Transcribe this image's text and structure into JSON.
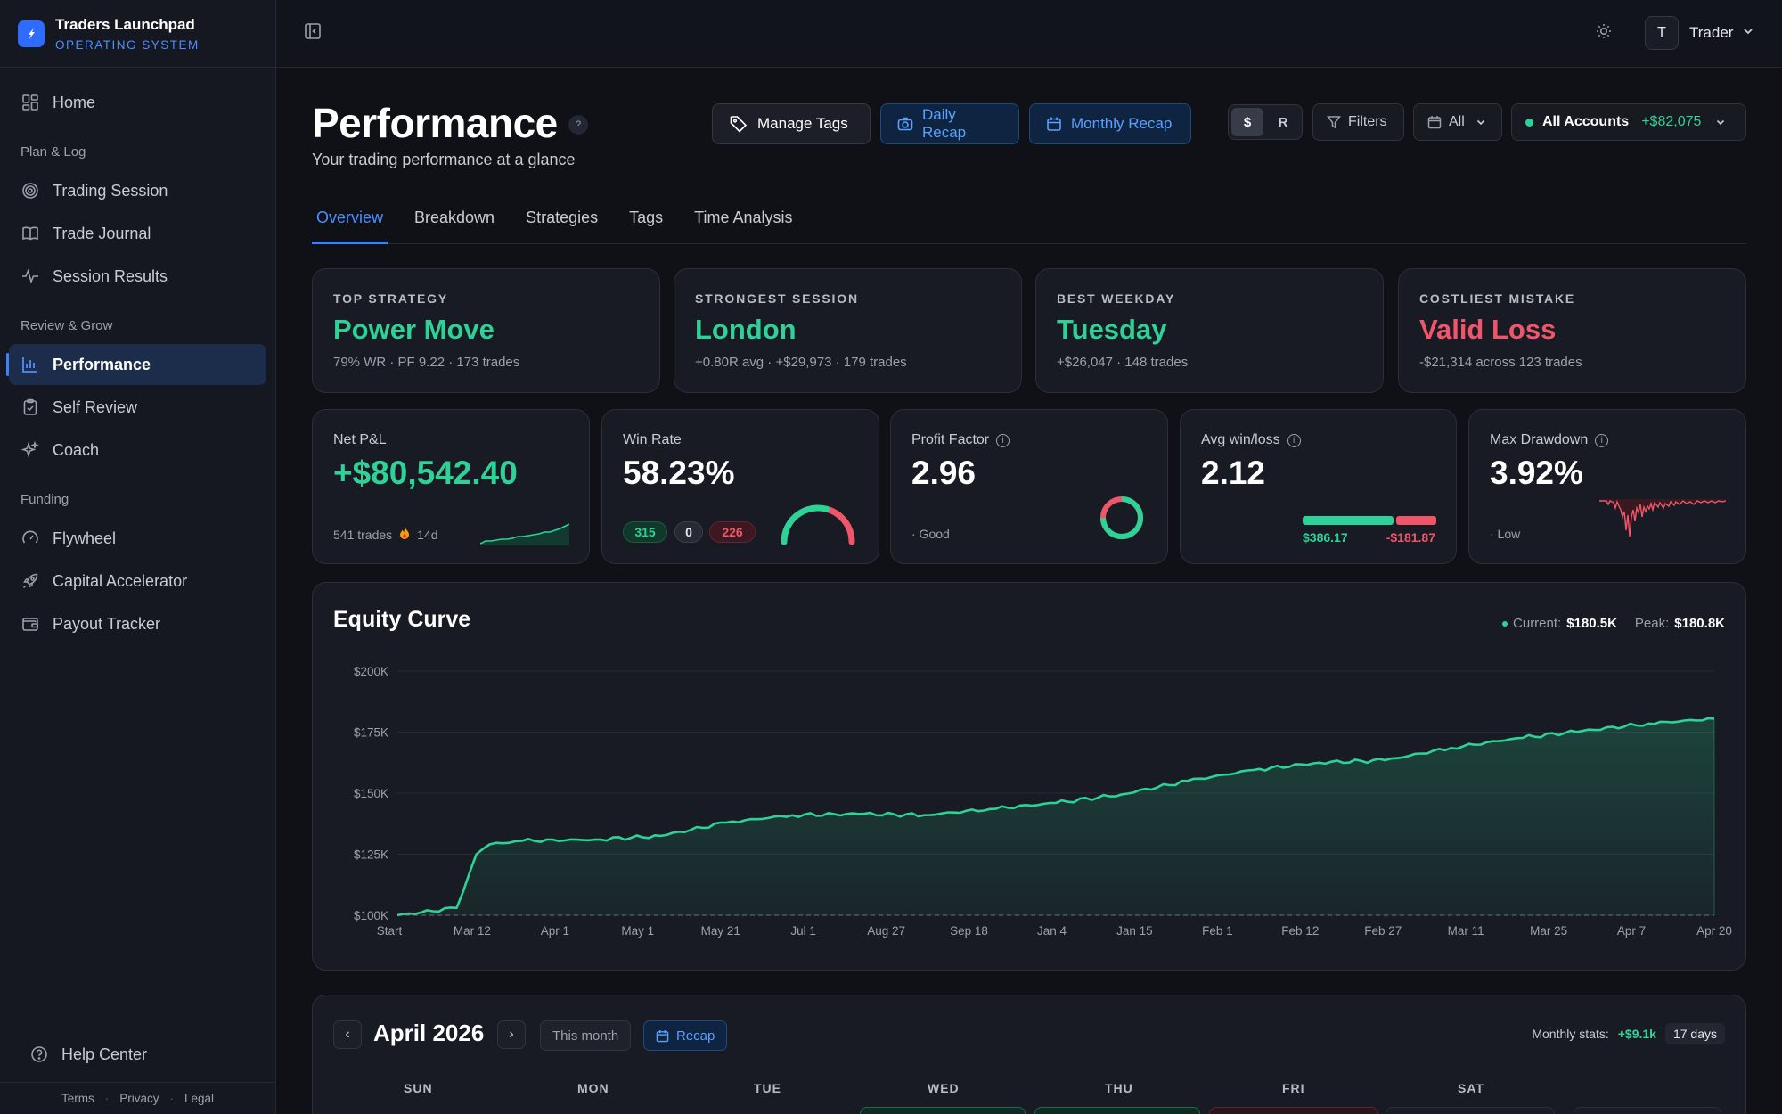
{
  "brand": {
    "title": "Traders Launchpad",
    "subtitle": "OPERATING SYSTEM"
  },
  "sidebar": {
    "home": "Home",
    "group_plan": "Plan & Log",
    "trading_session": "Trading Session",
    "trade_journal": "Trade Journal",
    "session_results": "Session Results",
    "group_review": "Review & Grow",
    "performance": "Performance",
    "self_review": "Self Review",
    "coach": "Coach",
    "group_funding": "Funding",
    "flywheel": "Flywheel",
    "capital_accelerator": "Capital Accelerator",
    "payout_tracker": "Payout Tracker",
    "help_center": "Help Center",
    "footer": {
      "terms": "Terms",
      "privacy": "Privacy",
      "legal": "Legal"
    }
  },
  "topbar": {
    "avatar_initial": "T",
    "user_name": "Trader"
  },
  "header": {
    "title": "Performance",
    "help": "?",
    "subtitle": "Your trading performance at a glance",
    "manage_tags": "Manage Tags",
    "daily_recap": "Daily Recap",
    "monthly_recap": "Monthly Recap",
    "unit_dollar": "$",
    "unit_r": "R",
    "filters": "Filters",
    "range": "All",
    "account": "All Accounts",
    "account_pnl": "+$82,075"
  },
  "tabs": [
    "Overview",
    "Breakdown",
    "Strategies",
    "Tags",
    "Time Analysis"
  ],
  "insights": [
    {
      "label": "TOP STRATEGY",
      "value": "Power Move",
      "detail": "79% WR · PF 9.22 · 173 trades",
      "tone": "green"
    },
    {
      "label": "STRONGEST SESSION",
      "value": "London",
      "detail": "+0.80R avg · +$29,973 · 179 trades",
      "tone": "green"
    },
    {
      "label": "BEST WEEKDAY",
      "value": "Tuesday",
      "detail": "+$26,047 · 148 trades",
      "tone": "green"
    },
    {
      "label": "COSTLIEST MISTAKE",
      "value": "Valid Loss",
      "detail": "-$21,314 across 123 trades",
      "tone": "red"
    }
  ],
  "metrics": {
    "net_pnl": {
      "label": "Net P&L",
      "value": "+$80,542.40",
      "trades": "541 trades",
      "streak": "14d"
    },
    "win_rate": {
      "label": "Win Rate",
      "value": "58.23%",
      "wins": "315",
      "breakeven": "0",
      "losses": "226",
      "fraction": 0.5823
    },
    "profit_factor": {
      "label": "Profit Factor",
      "value": "2.96",
      "note": "· Good",
      "fraction": 0.747
    },
    "avg_win_loss": {
      "label": "Avg win/loss",
      "value": "2.12",
      "avg_win": "$386.17",
      "avg_loss": "-$181.87",
      "win_fraction": 0.68
    },
    "max_drawdown": {
      "label": "Max Drawdown",
      "value": "3.92%",
      "note": "· Low"
    }
  },
  "chart_data": {
    "type": "area",
    "title": "Equity Curve",
    "current_label": "Current:",
    "current": "$180.5K",
    "peak_label": "Peak:",
    "peak": "$180.8K",
    "ylim": [
      100000,
      200000
    ],
    "yticks": [
      "$100K",
      "$125K",
      "$150K",
      "$175K",
      "$200K"
    ],
    "xticks": [
      "Start",
      "Mar 12",
      "Apr 1",
      "May 1",
      "May 21",
      "Jul 1",
      "Aug 27",
      "Sep 18",
      "Jan 4",
      "Jan 15",
      "Feb 1",
      "Feb 12",
      "Feb 27",
      "Mar 11",
      "Mar 25",
      "Apr 7",
      "Apr 20"
    ],
    "x": [
      0,
      0.045,
      0.06,
      0.07,
      0.08,
      0.095,
      0.15,
      0.2,
      0.25,
      0.3,
      0.35,
      0.4,
      0.45,
      0.5,
      0.55,
      0.6,
      0.65,
      0.7,
      0.75,
      0.8,
      0.85,
      0.9,
      0.95,
      1.0
    ],
    "values": [
      100000,
      103000,
      125000,
      129000,
      129500,
      130500,
      131000,
      132500,
      138000,
      141000,
      141500,
      141000,
      143500,
      146000,
      149500,
      155000,
      159500,
      162500,
      163500,
      168500,
      172500,
      175500,
      178500,
      180500
    ],
    "baseline": 100000,
    "line_color": "#2ed196"
  },
  "calendar": {
    "month": "April 2026",
    "this_month": "This month",
    "recap": "Recap",
    "monthly_stats_label": "Monthly stats:",
    "monthly_stats_value": "+$9.1k",
    "days": "17 days",
    "weekdays": [
      "SUN",
      "MON",
      "TUE",
      "WED",
      "THU",
      "FRI",
      "SAT"
    ]
  }
}
